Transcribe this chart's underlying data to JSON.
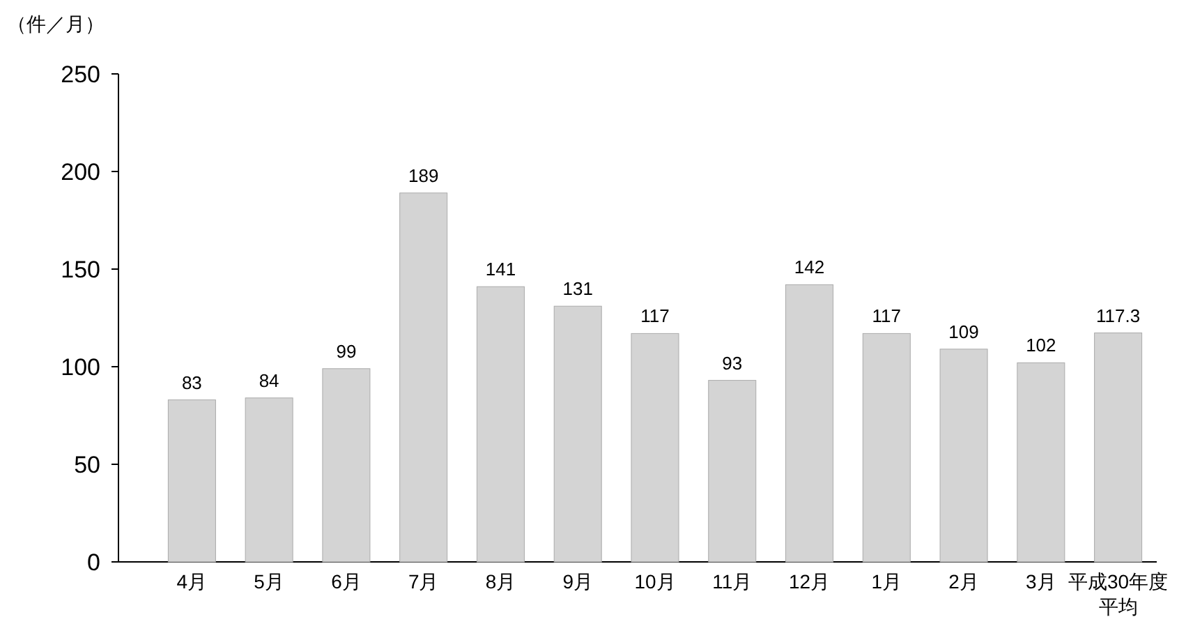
{
  "chart_data": {
    "type": "bar",
    "ylabel": "（件／月）",
    "categories": [
      "4月",
      "5月",
      "6月",
      "7月",
      "8月",
      "9月",
      "10月",
      "11月",
      "12月",
      "1月",
      "2月",
      "3月",
      "平成30年度平均"
    ],
    "values": [
      83,
      84,
      99,
      189,
      141,
      131,
      117,
      93,
      142,
      117,
      109,
      102,
      117.3
    ],
    "color": "#d4d4d4",
    "ylim": [
      0,
      250
    ],
    "yticks": [
      0,
      50,
      100,
      150,
      200,
      250
    ],
    "data_labels": true,
    "grid": false
  }
}
